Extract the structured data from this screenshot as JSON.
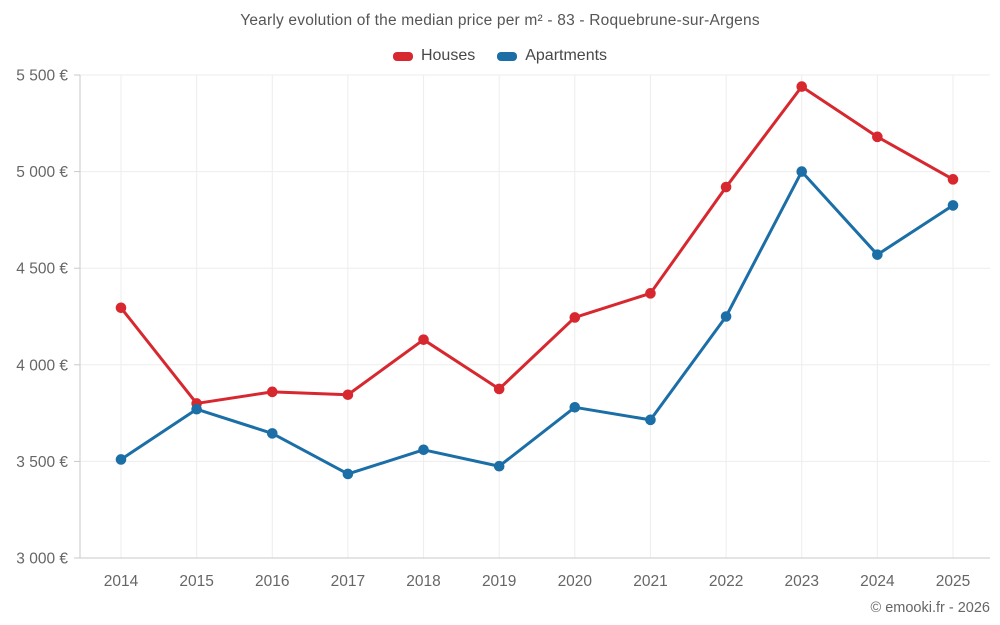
{
  "title": "Yearly evolution of the median price per m² - 83 - Roquebrune-sur-Argens",
  "legend": [
    {
      "label": "Houses",
      "color": "#d7282f"
    },
    {
      "label": "Apartments",
      "color": "#1b6ea6"
    }
  ],
  "footer": {
    "copyright": "© emooki.fr - 2026"
  },
  "chart_data": {
    "type": "line",
    "title": "Yearly evolution of the median price per m² - 83 - Roquebrune-sur-Argens",
    "x": [
      2014,
      2015,
      2016,
      2017,
      2018,
      2019,
      2020,
      2021,
      2022,
      2023,
      2024,
      2025
    ],
    "x_tick_labels": [
      "2014",
      "2015",
      "2016",
      "2017",
      "2018",
      "2019",
      "2020",
      "2021",
      "2022",
      "2023",
      "2024",
      "2025"
    ],
    "series": [
      {
        "name": "Houses",
        "color": "#d7282f",
        "values": [
          4295,
          3800,
          3860,
          3845,
          4130,
          3875,
          4245,
          4370,
          4920,
          5440,
          5180,
          4960
        ]
      },
      {
        "name": "Apartments",
        "color": "#1b6ea6",
        "values": [
          3510,
          3770,
          3645,
          3435,
          3560,
          3475,
          3780,
          3715,
          4250,
          5000,
          4570,
          4825
        ]
      }
    ],
    "ylim": [
      3000,
      5500
    ],
    "y_ticks": [
      3000,
      3500,
      4000,
      4500,
      5000,
      5500
    ],
    "y_tick_labels": [
      "3 000 €",
      "3 500 €",
      "4 000 €",
      "4 500 €",
      "5 000 €",
      "5 500 €"
    ],
    "currency": "€",
    "grid": true,
    "legend_position": "top",
    "marker": "circle"
  }
}
